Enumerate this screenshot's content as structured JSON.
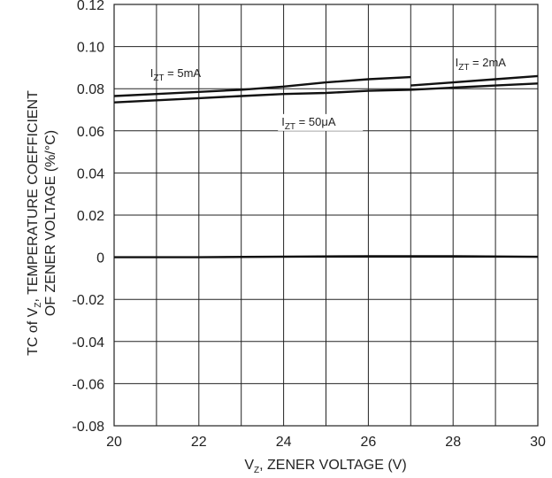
{
  "chart_data": {
    "type": "line",
    "xlabel": {
      "main": "V",
      "sub": "Z",
      "rest": ", ZENER VOLTAGE (V)"
    },
    "ylabel": {
      "line1": {
        "pre": "TC of V",
        "sub": "Z",
        "post": ", TEMPERATURE COEFFICIENT"
      },
      "line2": "OF ZENER VOLTAGE  (%/°C)"
    },
    "xlim": [
      20,
      30
    ],
    "ylim": [
      -0.08,
      0.12
    ],
    "xticks": [
      "20",
      "22",
      "24",
      "26",
      "28",
      "30"
    ],
    "yticks": [
      "-0.08",
      "-0.06",
      "-0.04",
      "-0.02",
      "0",
      "0.02",
      "0.04",
      "0.06",
      "0.08",
      "0.10",
      "0.12"
    ],
    "grid": true,
    "series": [
      {
        "name": {
          "pre": "I",
          "sub": "ZT",
          "post": " = 5mA"
        },
        "x": [
          20,
          21,
          22,
          23,
          24,
          25,
          26,
          27
        ],
        "y": [
          0.0765,
          0.0775,
          0.0785,
          0.0795,
          0.081,
          0.083,
          0.0845,
          0.0855
        ]
      },
      {
        "name": {
          "pre": "I",
          "sub": "ZT",
          "post": " = 2mA"
        },
        "x": [
          27,
          28,
          29,
          30
        ],
        "y": [
          0.0815,
          0.083,
          0.0845,
          0.086
        ]
      },
      {
        "name": {
          "pre": "I",
          "sub": "ZT",
          "post": " = 50μA"
        },
        "x": [
          20,
          21,
          22,
          23,
          24,
          25,
          26,
          27,
          28,
          29,
          30
        ],
        "y": [
          0.0735,
          0.0745,
          0.0755,
          0.0765,
          0.0775,
          0.078,
          0.079,
          0.0795,
          0.0805,
          0.0815,
          0.0825
        ]
      },
      {
        "name": null,
        "x": [
          20,
          22,
          24,
          26,
          28,
          30
        ],
        "y": [
          0.0,
          0.0,
          0.0003,
          0.0005,
          0.0005,
          0.0002
        ]
      }
    ]
  }
}
